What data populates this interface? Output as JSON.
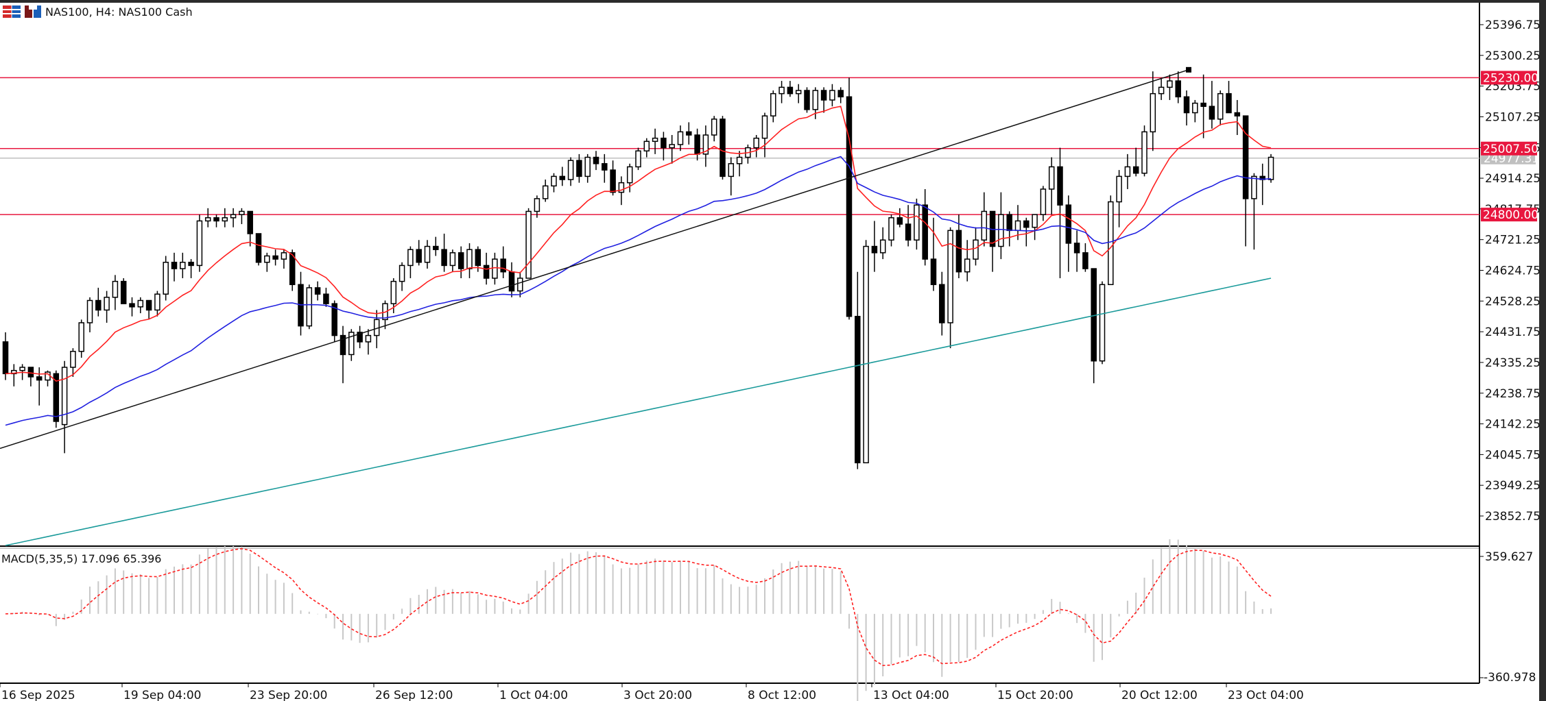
{
  "header": {
    "symbol_title": "NAS100, H4:  NAS100 Cash",
    "icons": [
      "bar-chart-mode-icon",
      "chart-settings-icon"
    ]
  },
  "colors": {
    "hline": "#e8173f",
    "ma_fast": "#ff2020",
    "ma_mid": "#2020e0",
    "ma_slow": "#1a9a9a",
    "trendline": "#111111",
    "bid_line": "#bfbfbf",
    "macd_hist": "#c8c8c8",
    "macd_signal": "#ff2020",
    "candle": "#000000"
  },
  "price_axis": {
    "ticks": [
      "25396.75",
      "25300.25",
      "25203.75",
      "25107.25",
      "25010.75",
      "24914.25",
      "24817.75",
      "24721.25",
      "24624.75",
      "24528.25",
      "24431.75",
      "24335.25",
      "24238.75",
      "24142.25",
      "24045.75",
      "23949.25",
      "23852.75"
    ],
    "levels": [
      {
        "label": "25230.00",
        "price": 25230.0
      },
      {
        "label": "25007.50",
        "price": 25007.5
      },
      {
        "label": "24800.00",
        "price": 24800.0
      }
    ],
    "bid": {
      "label": "24977.31",
      "price": 24977.31
    }
  },
  "time_axis": {
    "ticks": [
      "16 Sep 2025",
      "19 Sep 04:00",
      "23 Sep 20:00",
      "26 Sep 12:00",
      "1 Oct 04:00",
      "3 Oct 20:00",
      "8 Oct 12:00",
      "13 Oct 04:00",
      "15 Oct 20:00",
      "20 Oct 12:00",
      "23 Oct 04:00"
    ]
  },
  "macd": {
    "label": "MACD(5,35,5) 17.096 65.396",
    "max_label": "359.627",
    "min_label": "-360.978"
  },
  "chart_data": {
    "type": "candlestick",
    "title": "NAS100, H4: NAS100 Cash",
    "xlabel": "",
    "ylabel": "",
    "ylim": [
      23790,
      25440
    ],
    "grid": false,
    "horizontal_levels": [
      25230.0,
      25007.5,
      24800.0
    ],
    "current_bid": 24977.31,
    "candles": [
      [
        24400,
        24430,
        24280,
        24300
      ],
      [
        24300,
        24330,
        24260,
        24310
      ],
      [
        24310,
        24330,
        24280,
        24320
      ],
      [
        24320,
        24320,
        24260,
        24290
      ],
      [
        24290,
        24320,
        24200,
        24280
      ],
      [
        24280,
        24310,
        24260,
        24305
      ],
      [
        24300,
        24310,
        24130,
        24150
      ],
      [
        24140,
        24340,
        24050,
        24320
      ],
      [
        24320,
        24380,
        24290,
        24370
      ],
      [
        24370,
        24470,
        24350,
        24460
      ],
      [
        24460,
        24540,
        24430,
        24530
      ],
      [
        24530,
        24570,
        24480,
        24500
      ],
      [
        24500,
        24560,
        24460,
        24540
      ],
      [
        24540,
        24610,
        24500,
        24590
      ],
      [
        24590,
        24600,
        24520,
        24520
      ],
      [
        24520,
        24540,
        24480,
        24510
      ],
      [
        24510,
        24540,
        24490,
        24530
      ],
      [
        24530,
        24530,
        24470,
        24500
      ],
      [
        24500,
        24560,
        24480,
        24550
      ],
      [
        24550,
        24670,
        24530,
        24650
      ],
      [
        24650,
        24680,
        24590,
        24630
      ],
      [
        24630,
        24680,
        24600,
        24650
      ],
      [
        24650,
        24660,
        24600,
        24640
      ],
      [
        24640,
        24800,
        24620,
        24780
      ],
      [
        24780,
        24820,
        24760,
        24790
      ],
      [
        24790,
        24800,
        24760,
        24780
      ],
      [
        24780,
        24820,
        24760,
        24790
      ],
      [
        24790,
        24820,
        24760,
        24800
      ],
      [
        24800,
        24820,
        24770,
        24810
      ],
      [
        24810,
        24810,
        24700,
        24740
      ],
      [
        24740,
        24740,
        24640,
        24650
      ],
      [
        24650,
        24680,
        24620,
        24670
      ],
      [
        24670,
        24690,
        24640,
        24660
      ],
      [
        24660,
        24690,
        24630,
        24680
      ],
      [
        24680,
        24690,
        24560,
        24580
      ],
      [
        24580,
        24620,
        24420,
        24450
      ],
      [
        24450,
        24580,
        24440,
        24570
      ],
      [
        24570,
        24590,
        24530,
        24550
      ],
      [
        24550,
        24570,
        24510,
        24520
      ],
      [
        24520,
        24530,
        24400,
        24420
      ],
      [
        24420,
        24450,
        24270,
        24360
      ],
      [
        24360,
        24440,
        24340,
        24430
      ],
      [
        24430,
        24450,
        24380,
        24400
      ],
      [
        24400,
        24440,
        24360,
        24420
      ],
      [
        24420,
        24500,
        24380,
        24470
      ],
      [
        24470,
        24530,
        24440,
        24520
      ],
      [
        24520,
        24600,
        24490,
        24590
      ],
      [
        24590,
        24650,
        24560,
        24640
      ],
      [
        24640,
        24700,
        24600,
        24690
      ],
      [
        24690,
        24720,
        24640,
        24650
      ],
      [
        24650,
        24720,
        24630,
        24700
      ],
      [
        24700,
        24730,
        24670,
        24690
      ],
      [
        24690,
        24740,
        24620,
        24640
      ],
      [
        24640,
        24690,
        24620,
        24680
      ],
      [
        24680,
        24700,
        24600,
        24630
      ],
      [
        24630,
        24710,
        24600,
        24690
      ],
      [
        24690,
        24700,
        24620,
        24640
      ],
      [
        24640,
        24680,
        24580,
        24600
      ],
      [
        24600,
        24680,
        24580,
        24660
      ],
      [
        24660,
        24700,
        24600,
        24620
      ],
      [
        24620,
        24650,
        24540,
        24560
      ],
      [
        24560,
        24620,
        24540,
        24600
      ],
      [
        24600,
        24820,
        24600,
        24810
      ],
      [
        24810,
        24860,
        24790,
        24850
      ],
      [
        24850,
        24910,
        24840,
        24890
      ],
      [
        24890,
        24930,
        24870,
        24920
      ],
      [
        24920,
        24950,
        24890,
        24910
      ],
      [
        24910,
        24980,
        24890,
        24970
      ],
      [
        24970,
        24990,
        24900,
        24920
      ],
      [
        24920,
        24990,
        24900,
        24980
      ],
      [
        24980,
        25000,
        24940,
        24960
      ],
      [
        24960,
        24990,
        24900,
        24940
      ],
      [
        24940,
        24970,
        24860,
        24870
      ],
      [
        24870,
        24920,
        24830,
        24900
      ],
      [
        24900,
        24960,
        24870,
        24950
      ],
      [
        24950,
        25010,
        24940,
        25000
      ],
      [
        25000,
        25040,
        24980,
        25030
      ],
      [
        25030,
        25070,
        24990,
        25040
      ],
      [
        25040,
        25060,
        24970,
        25010
      ],
      [
        25010,
        25050,
        24960,
        25020
      ],
      [
        25020,
        25080,
        25000,
        25060
      ],
      [
        25060,
        25090,
        25020,
        25050
      ],
      [
        25050,
        25070,
        24970,
        24990
      ],
      [
        24990,
        25080,
        24950,
        25050
      ],
      [
        25050,
        25110,
        25030,
        25100
      ],
      [
        25100,
        25110,
        24910,
        24920
      ],
      [
        24920,
        24980,
        24860,
        24960
      ],
      [
        24960,
        25000,
        24920,
        24980
      ],
      [
        24980,
        25020,
        24960,
        25010
      ],
      [
        25010,
        25050,
        24980,
        25040
      ],
      [
        25040,
        25120,
        24980,
        25110
      ],
      [
        25110,
        25190,
        25090,
        25180
      ],
      [
        25180,
        25220,
        25150,
        25200
      ],
      [
        25200,
        25220,
        25170,
        25180
      ],
      [
        25180,
        25210,
        25150,
        25190
      ],
      [
        25190,
        25200,
        25120,
        25130
      ],
      [
        25130,
        25200,
        25100,
        25190
      ],
      [
        25190,
        25200,
        25120,
        25160
      ],
      [
        25160,
        25210,
        25140,
        25190
      ],
      [
        25190,
        25200,
        25150,
        25170
      ],
      [
        25170,
        25230,
        24470,
        24480
      ],
      [
        24480,
        24620,
        24000,
        24020
      ],
      [
        24020,
        24720,
        24020,
        24700
      ],
      [
        24700,
        24780,
        24620,
        24680
      ],
      [
        24680,
        24760,
        24660,
        24720
      ],
      [
        24720,
        24800,
        24700,
        24790
      ],
      [
        24790,
        24820,
        24760,
        24770
      ],
      [
        24770,
        24830,
        24700,
        24720
      ],
      [
        24720,
        24850,
        24690,
        24830
      ],
      [
        24830,
        24880,
        24640,
        24660
      ],
      [
        24660,
        24790,
        24560,
        24580
      ],
      [
        24580,
        24620,
        24420,
        24460
      ],
      [
        24460,
        24760,
        24380,
        24750
      ],
      [
        24750,
        24800,
        24600,
        24620
      ],
      [
        24620,
        24720,
        24590,
        24660
      ],
      [
        24660,
        24760,
        24640,
        24720
      ],
      [
        24720,
        24870,
        24700,
        24810
      ],
      [
        24810,
        24810,
        24620,
        24700
      ],
      [
        24700,
        24870,
        24660,
        24800
      ],
      [
        24800,
        24810,
        24700,
        24750
      ],
      [
        24750,
        24830,
        24720,
        24780
      ],
      [
        24780,
        24790,
        24700,
        24760
      ],
      [
        24760,
        24800,
        24720,
        24800
      ],
      [
        24800,
        24890,
        24780,
        24880
      ],
      [
        24880,
        24980,
        24800,
        24950
      ],
      [
        24950,
        25010,
        24600,
        24830
      ],
      [
        24830,
        24860,
        24620,
        24710
      ],
      [
        24710,
        24750,
        24620,
        24680
      ],
      [
        24680,
        24710,
        24620,
        24630
      ],
      [
        24630,
        24630,
        24270,
        24340
      ],
      [
        24340,
        24590,
        24330,
        24580
      ],
      [
        24580,
        24860,
        24580,
        24840
      ],
      [
        24840,
        24940,
        24760,
        24920
      ],
      [
        24920,
        24990,
        24880,
        24950
      ],
      [
        24950,
        25010,
        24920,
        24930
      ],
      [
        24930,
        25080,
        24920,
        25060
      ],
      [
        25060,
        25250,
        25000,
        25180
      ],
      [
        25180,
        25230,
        25160,
        25200
      ],
      [
        25200,
        25240,
        25160,
        25220
      ],
      [
        25220,
        25250,
        25150,
        25170
      ],
      [
        25170,
        25190,
        25080,
        25120
      ],
      [
        25120,
        25160,
        25090,
        25150
      ],
      [
        25150,
        25240,
        25040,
        25140
      ],
      [
        25140,
        25220,
        25070,
        25100
      ],
      [
        25100,
        25190,
        25080,
        25180
      ],
      [
        25180,
        25220,
        25120,
        25120
      ],
      [
        25120,
        25160,
        25050,
        25110
      ],
      [
        25110,
        25110,
        24700,
        24850
      ],
      [
        24850,
        24930,
        24690,
        24920
      ],
      [
        24920,
        24960,
        24830,
        24910
      ],
      [
        24910,
        24990,
        24900,
        24980
      ]
    ],
    "series": [
      {
        "name": "MA fast (red)",
        "color": "#ff2020"
      },
      {
        "name": "MA mid (blue)",
        "color": "#2020e0"
      },
      {
        "name": "MA slow (teal)",
        "color": "#1a9a9a"
      }
    ],
    "trendline": {
      "from": [
        0,
        24065
      ],
      "to": [
        1733,
        25255
      ]
    },
    "macd_range": [
      -360.978,
      359.627
    ]
  }
}
